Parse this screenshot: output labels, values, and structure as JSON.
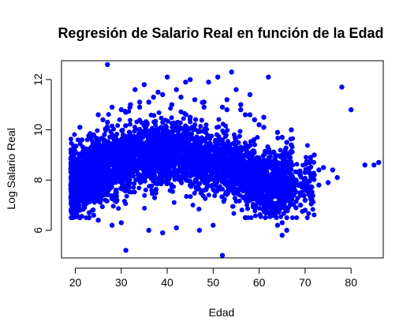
{
  "chart_data": {
    "type": "scatter",
    "title": "Regresión de Salario Real en función de la Edad",
    "xlabel": "Edad",
    "ylabel": "Log Salario Real",
    "xlim": [
      17,
      87
    ],
    "ylim": [
      4.9,
      12.75
    ],
    "xticks": [
      "20",
      "30",
      "40",
      "50",
      "60",
      "70",
      "80"
    ],
    "yticks": [
      "6",
      "8",
      "10",
      "12"
    ],
    "grid": false,
    "legend": "none",
    "point_color": "#0000ff",
    "series": [
      {
        "x": [
          27,
          40,
          45,
          51,
          54,
          62,
          49,
          44,
          35,
          33,
          55,
          58,
          78,
          80,
          85,
          83,
          86,
          76,
          74,
          72,
          70,
          68,
          73,
          75,
          77,
          69,
          71,
          66,
          65,
          64,
          70,
          63,
          68,
          31,
          52,
          20,
          21,
          22,
          23,
          24,
          19,
          19,
          20,
          25,
          26,
          28,
          30,
          32,
          34,
          36,
          37,
          39,
          38,
          42,
          43,
          46,
          48,
          53,
          56,
          57,
          59,
          61,
          60,
          64,
          65,
          66,
          67,
          72,
          71,
          73,
          69,
          70,
          28,
          25,
          23,
          30,
          36,
          39,
          42,
          47,
          50,
          57,
          62,
          65,
          21,
          24,
          27,
          31,
          34,
          41,
          48,
          53,
          58,
          61,
          67,
          22,
          26,
          29,
          45,
          52,
          56
        ],
        "y": [
          12.6,
          12.1,
          12.0,
          12.1,
          12.3,
          12.1,
          11.9,
          11.9,
          11.8,
          11.6,
          11.6,
          11.4,
          11.7,
          10.8,
          8.6,
          8.6,
          8.7,
          8.4,
          8.5,
          8.2,
          8.3,
          8.0,
          7.8,
          7.9,
          8.1,
          7.5,
          7.4,
          6.0,
          6.3,
          6.2,
          6.8,
          6.6,
          6.9,
          5.2,
          5.0,
          6.6,
          6.5,
          6.9,
          6.7,
          6.6,
          7.3,
          7.8,
          9.1,
          10.6,
          10.4,
          10.9,
          10.8,
          11.0,
          11.1,
          11.1,
          11.3,
          11.4,
          11.5,
          11.6,
          11.3,
          11.2,
          11.1,
          11.2,
          10.8,
          10.6,
          10.4,
          10.1,
          10.2,
          9.9,
          9.7,
          9.5,
          9.4,
          9.0,
          8.7,
          8.4,
          7.0,
          7.2,
          6.2,
          6.4,
          6.5,
          6.3,
          6.0,
          5.9,
          6.1,
          6.0,
          6.2,
          6.5,
          6.7,
          5.8,
          10.1,
          9.8,
          10.3,
          10.7,
          10.9,
          11.0,
          10.9,
          10.8,
          10.6,
          10.5,
          10.0,
          8.9,
          9.2,
          9.6,
          10.5,
          10.9,
          11.0
        ]
      }
    ]
  }
}
